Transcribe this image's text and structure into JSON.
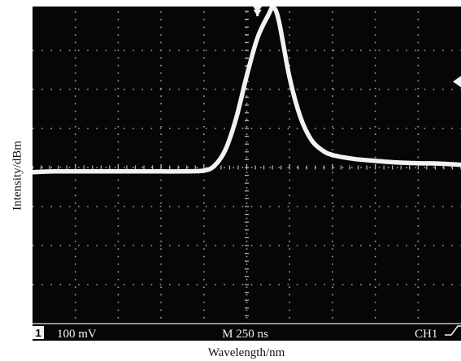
{
  "chart_data": {
    "type": "line",
    "title": "",
    "xlabel": "Wavelength/nm",
    "ylabel": "Intensity/dBm",
    "grid": true,
    "grid_divisions": {
      "x": 10,
      "y": 8
    },
    "xlim": [
      0,
      10
    ],
    "ylim": [
      -4,
      4
    ],
    "readouts": {
      "channel_indicator": "1",
      "ch1_scale": "100 mV",
      "timebase": "M 250 ns",
      "trigger_source": "CH1"
    },
    "series": [
      {
        "values": [
          [
            0.0,
            -0.12
          ],
          [
            0.5,
            -0.1
          ],
          [
            1.0,
            -0.1
          ],
          [
            1.5,
            -0.1
          ],
          [
            2.0,
            -0.1
          ],
          [
            2.5,
            -0.1
          ],
          [
            3.0,
            -0.1
          ],
          [
            3.5,
            -0.1
          ],
          [
            4.0,
            -0.08
          ],
          [
            4.25,
            0.05
          ],
          [
            4.5,
            0.45
          ],
          [
            4.75,
            1.25
          ],
          [
            5.0,
            2.35
          ],
          [
            5.25,
            3.32
          ],
          [
            5.5,
            3.9
          ],
          [
            5.62,
            4.1
          ],
          [
            5.75,
            3.75
          ],
          [
            6.0,
            2.3
          ],
          [
            6.25,
            1.3
          ],
          [
            6.5,
            0.72
          ],
          [
            6.75,
            0.45
          ],
          [
            7.0,
            0.32
          ],
          [
            7.5,
            0.22
          ],
          [
            8.0,
            0.17
          ],
          [
            8.5,
            0.13
          ],
          [
            9.0,
            0.11
          ],
          [
            9.5,
            0.1
          ],
          [
            10.0,
            0.07
          ]
        ],
        "color": "#f2f2f2"
      }
    ],
    "markers": {
      "trigger_position_x": 5.25,
      "trigger_level_y": 2.2
    }
  }
}
